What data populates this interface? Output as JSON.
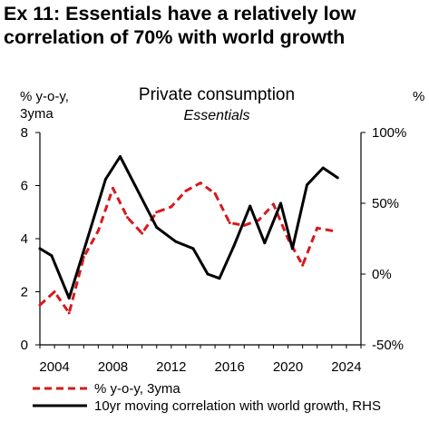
{
  "header": {
    "title_line1": "Ex 11: Essentials have a relatively low",
    "title_line2": "correlation of 70% with world growth"
  },
  "chart_data": {
    "type": "line",
    "title": "Private consumption",
    "subtitle": "Essentials",
    "ylabel_left_line1": "% y-o-y,",
    "ylabel_left_line2": "3yma",
    "ylabel_right": "%",
    "xlim": [
      2003,
      2025
    ],
    "x_ticks": [
      2004,
      2008,
      2012,
      2016,
      2020,
      2024
    ],
    "x_tick_labels": [
      "2004",
      "2008",
      "2012",
      "2016",
      "2020",
      "2024"
    ],
    "ylim_left": [
      0,
      8
    ],
    "y_ticks_left": [
      0,
      2,
      4,
      6,
      8
    ],
    "y_tick_labels_left": [
      "0",
      "2",
      "4",
      "6",
      "8"
    ],
    "ylim_right": [
      -50,
      100
    ],
    "y_ticks_right": [
      -50,
      0,
      50,
      100
    ],
    "y_tick_labels_right": [
      "-50%",
      "0%",
      "50%",
      "100%"
    ],
    "grid": false,
    "legend_position": "bottom",
    "series": [
      {
        "name": "% y-o-y, 3yma",
        "axis": "left",
        "color": "#d7191c",
        "style": "dashed",
        "x": [
          2003,
          2004,
          2005,
          2006,
          2007,
          2008,
          2009,
          2010,
          2011,
          2012,
          2013,
          2014,
          2015,
          2016,
          2017,
          2018,
          2019,
          2020,
          2021,
          2022,
          2023
        ],
        "y": [
          1.5,
          2.0,
          1.2,
          3.3,
          4.3,
          5.9,
          4.8,
          4.2,
          5.0,
          5.2,
          5.8,
          6.1,
          5.7,
          4.6,
          4.5,
          4.7,
          5.3,
          4.0,
          3.0,
          4.4,
          4.3
        ]
      },
      {
        "name": "10yr moving correlation with world growth, RHS",
        "axis": "right",
        "color": "#000000",
        "style": "solid",
        "x": [
          2003,
          2003.8,
          2005,
          2006.2,
          2007.5,
          2008.5,
          2009.5,
          2011,
          2012.3,
          2013.5,
          2014.5,
          2015.3,
          2016.3,
          2017.4,
          2018.4,
          2019.5,
          2020.3,
          2021.3,
          2022.4,
          2023.4
        ],
        "y": [
          18,
          13,
          -17,
          23,
          67,
          83,
          63,
          33,
          23,
          18,
          0,
          -3,
          20,
          48,
          22,
          50,
          18,
          63,
          75,
          68
        ]
      }
    ]
  }
}
